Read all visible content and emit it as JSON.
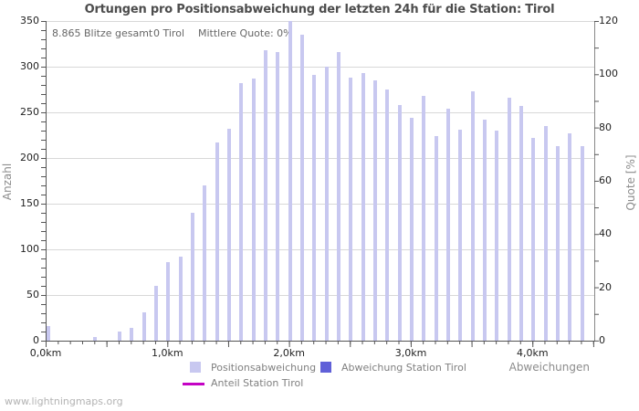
{
  "title": "Ortungen pro Positionsabweichung der letzten 24h für die Station: Tirol",
  "stats": {
    "blitze_gesamt": "8.865 Blitze gesamt",
    "station_count": "0 Tirol",
    "mittlere_quote": "Mittlere Quote: 0%"
  },
  "axes": {
    "left_label": "Anzahl",
    "right_label": "Quote [%]",
    "x_label": "Abweichungen"
  },
  "legend": {
    "positionsabweichung": "Positionsabweichung",
    "abweichung_station": "Abweichung Station Tirol",
    "anteil_station": "Anteil Station Tirol"
  },
  "watermark": "www.lightningmaps.org",
  "colors": {
    "bar": "#c8c8f0",
    "station_bar": "#6060d8",
    "anteil_line": "#c403c4",
    "grid": "#d8d8d8",
    "axis": "#555555",
    "tick_text": "#222222",
    "muted_text": "#808080",
    "title_text": "#4d4d4d"
  },
  "chart_data": {
    "type": "bar",
    "title": "Ortungen pro Positionsabweichung der letzten 24h für die Station: Tirol",
    "xlabel": "Abweichungen",
    "ylabel_left": "Anzahl",
    "ylabel_right": "Quote [%]",
    "x_unit": "km",
    "categories_km": [
      0.0,
      0.1,
      0.2,
      0.3,
      0.4,
      0.5,
      0.6,
      0.7,
      0.8,
      0.9,
      1.0,
      1.1,
      1.2,
      1.3,
      1.4,
      1.5,
      1.6,
      1.7,
      1.8,
      1.9,
      2.0,
      2.1,
      2.2,
      2.3,
      2.4,
      2.5,
      2.6,
      2.7,
      2.8,
      2.9,
      3.0,
      3.1,
      3.2,
      3.3,
      3.4,
      3.5,
      3.6,
      3.7,
      3.8,
      3.9,
      4.0,
      4.1,
      4.2,
      4.3,
      4.4
    ],
    "series": [
      {
        "name": "Positionsabweichung",
        "axis": "left",
        "values": [
          16,
          0,
          0,
          0,
          4,
          0,
          10,
          14,
          31,
          60,
          86,
          92,
          140,
          170,
          217,
          232,
          282,
          287,
          318,
          316,
          350,
          335,
          291,
          300,
          316,
          288,
          293,
          285,
          275,
          258,
          244,
          268,
          224,
          254,
          231,
          273,
          242,
          230,
          266,
          257,
          222,
          235,
          213,
          227,
          213
        ]
      },
      {
        "name": "Abweichung Station Tirol",
        "axis": "left",
        "values": [
          0,
          0,
          0,
          0,
          0,
          0,
          0,
          0,
          0,
          0,
          0,
          0,
          0,
          0,
          0,
          0,
          0,
          0,
          0,
          0,
          0,
          0,
          0,
          0,
          0,
          0,
          0,
          0,
          0,
          0,
          0,
          0,
          0,
          0,
          0,
          0,
          0,
          0,
          0,
          0,
          0,
          0,
          0,
          0,
          0
        ]
      },
      {
        "name": "Anteil Station Tirol",
        "axis": "right",
        "type": "line",
        "values": [
          0,
          0,
          0,
          0,
          0,
          0,
          0,
          0,
          0,
          0,
          0,
          0,
          0,
          0,
          0,
          0,
          0,
          0,
          0,
          0,
          0,
          0,
          0,
          0,
          0,
          0,
          0,
          0,
          0,
          0,
          0,
          0,
          0,
          0,
          0,
          0,
          0,
          0,
          0,
          0,
          0,
          0,
          0,
          0,
          0
        ]
      }
    ],
    "ylim_left": [
      0,
      350
    ],
    "ylim_right": [
      0,
      120
    ],
    "yticks_left": [
      0,
      50,
      100,
      150,
      200,
      250,
      300,
      350
    ],
    "yticks_right": [
      0,
      20,
      40,
      60,
      80,
      100,
      120
    ],
    "xticks": [
      {
        "km": 0,
        "label": "0,0km"
      },
      {
        "km": 1,
        "label": "1,0km"
      },
      {
        "km": 2,
        "label": "2,0km"
      },
      {
        "km": 3,
        "label": "3,0km"
      },
      {
        "km": 4,
        "label": "4,0km"
      }
    ],
    "grid": true,
    "legend_position": "bottom"
  }
}
